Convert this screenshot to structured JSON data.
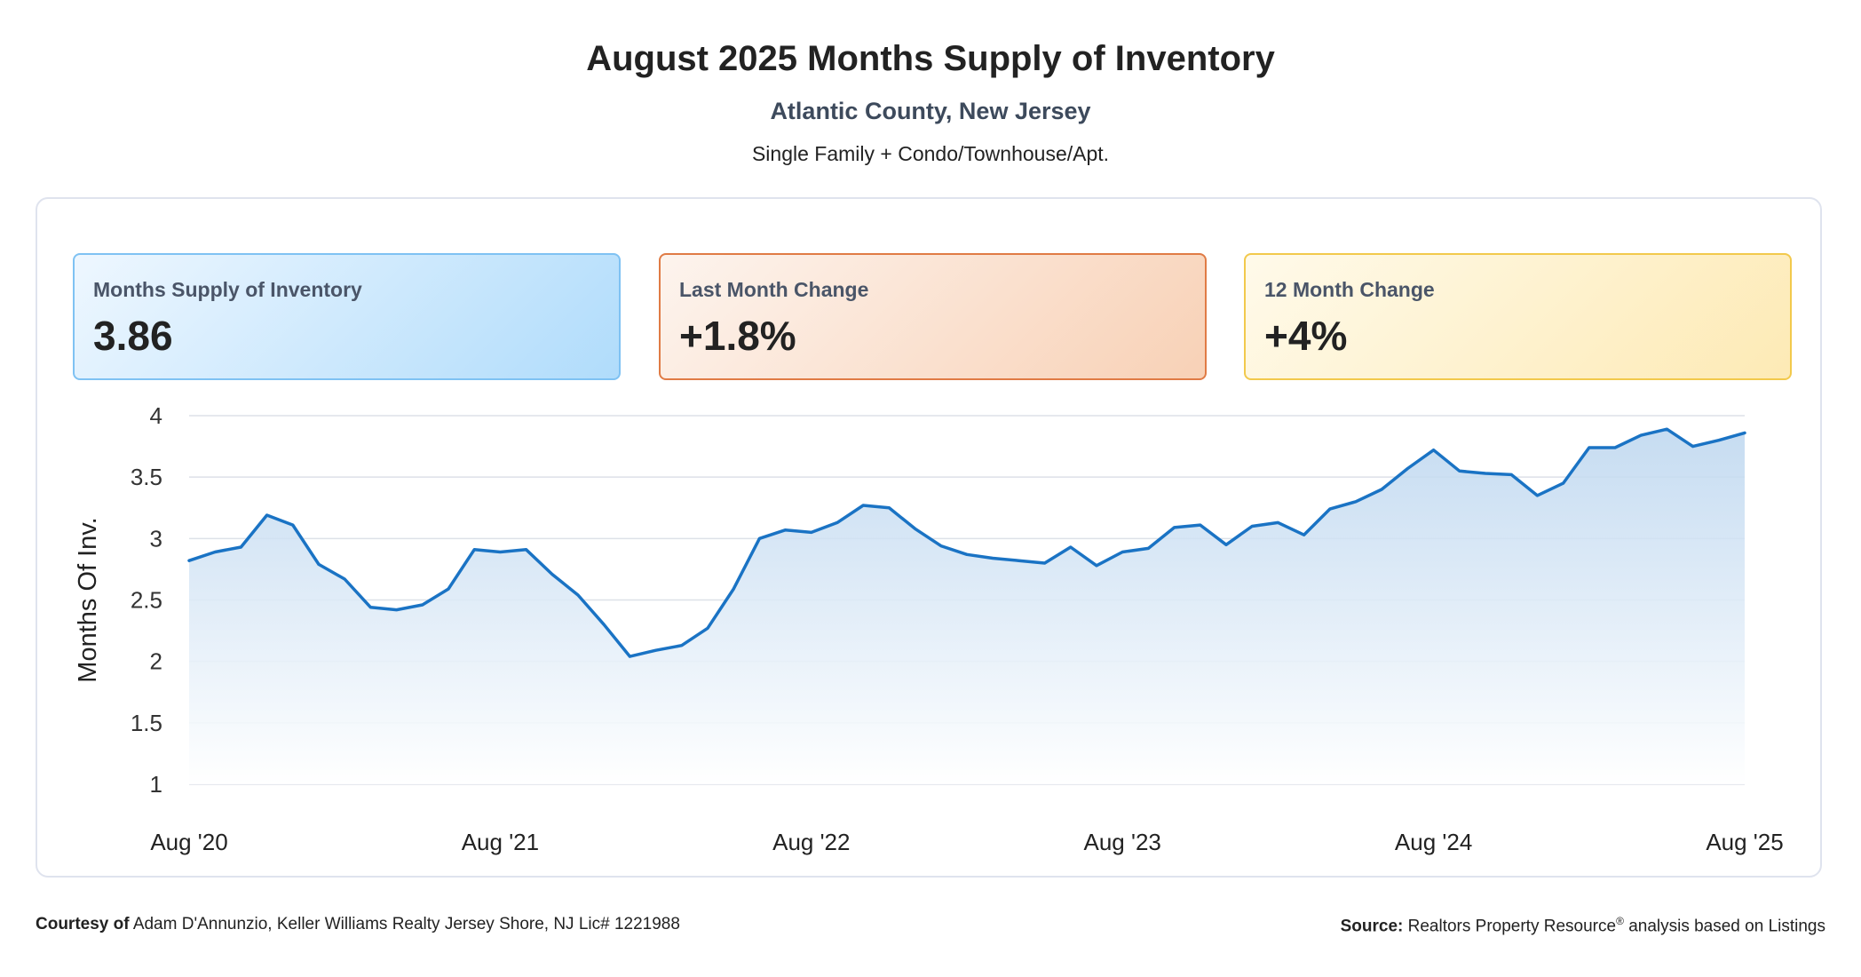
{
  "header": {
    "title": "August 2025 Months Supply of Inventory",
    "subtitle": "Atlantic County, New Jersey",
    "segment": "Single Family + Condo/Townhouse/Apt."
  },
  "cards": [
    {
      "label": "Months Supply of Inventory",
      "value": "3.86"
    },
    {
      "label": "Last Month Change",
      "value": "+1.8%"
    },
    {
      "label": "12 Month Change",
      "value": "+4%"
    }
  ],
  "colors": {
    "line": "#1a73c4",
    "fill_top": "#bcd6ef",
    "fill_bottom": "#ffffff",
    "grid": "#dde1e8"
  },
  "chart_data": {
    "type": "area",
    "ylabel": "Months Of Inv.",
    "ylim": [
      1,
      4
    ],
    "yticks": [
      1,
      1.5,
      2,
      2.5,
      3,
      3.5,
      4
    ],
    "ytick_labels": [
      "1",
      "1.5",
      "2",
      "2.5",
      "3",
      "3.5",
      "4"
    ],
    "xtick_labels": [
      "Aug '20",
      "Aug '21",
      "Aug '22",
      "Aug '23",
      "Aug '24",
      "Aug '25"
    ],
    "grid": true,
    "x": [
      "2020-08",
      "2020-09",
      "2020-10",
      "2020-11",
      "2020-12",
      "2021-01",
      "2021-02",
      "2021-03",
      "2021-04",
      "2021-05",
      "2021-06",
      "2021-07",
      "2021-08",
      "2021-09",
      "2021-10",
      "2021-11",
      "2021-12",
      "2022-01",
      "2022-02",
      "2022-03",
      "2022-04",
      "2022-05",
      "2022-06",
      "2022-07",
      "2022-08",
      "2022-09",
      "2022-10",
      "2022-11",
      "2022-12",
      "2023-01",
      "2023-02",
      "2023-03",
      "2023-04",
      "2023-05",
      "2023-06",
      "2023-07",
      "2023-08",
      "2023-09",
      "2023-10",
      "2023-11",
      "2023-12",
      "2024-01",
      "2024-02",
      "2024-03",
      "2024-04",
      "2024-05",
      "2024-06",
      "2024-07",
      "2024-08",
      "2024-09",
      "2024-10",
      "2024-11",
      "2024-12",
      "2025-01",
      "2025-02",
      "2025-03",
      "2025-04",
      "2025-05",
      "2025-06",
      "2025-07",
      "2025-08"
    ],
    "series": [
      {
        "values": [
          2.82,
          2.89,
          2.93,
          3.19,
          3.11,
          2.79,
          2.67,
          2.44,
          2.42,
          2.46,
          2.59,
          2.91,
          2.89,
          2.91,
          2.71,
          2.54,
          2.3,
          2.04,
          2.09,
          2.13,
          2.27,
          2.59,
          3.0,
          3.07,
          3.05,
          3.13,
          3.27,
          3.25,
          3.08,
          2.94,
          2.87,
          2.84,
          2.82,
          2.8,
          2.93,
          2.78,
          2.89,
          2.92,
          3.09,
          3.11,
          2.95,
          3.1,
          3.13,
          3.03,
          3.24,
          3.3,
          3.4,
          3.57,
          3.72,
          3.55,
          3.53,
          3.52,
          3.35,
          3.45,
          3.74,
          3.74,
          3.84,
          3.89,
          3.75,
          3.8,
          3.86
        ]
      }
    ]
  },
  "footer": {
    "courtesy_label": "Courtesy of",
    "courtesy_text": "Adam D'Annunzio, Keller Williams Realty Jersey Shore, NJ Lic# 1221988",
    "source_label": "Source:",
    "source_text": "Realtors Property Resource",
    "source_mark": "®",
    "source_suffix": "analysis based on Listings"
  }
}
